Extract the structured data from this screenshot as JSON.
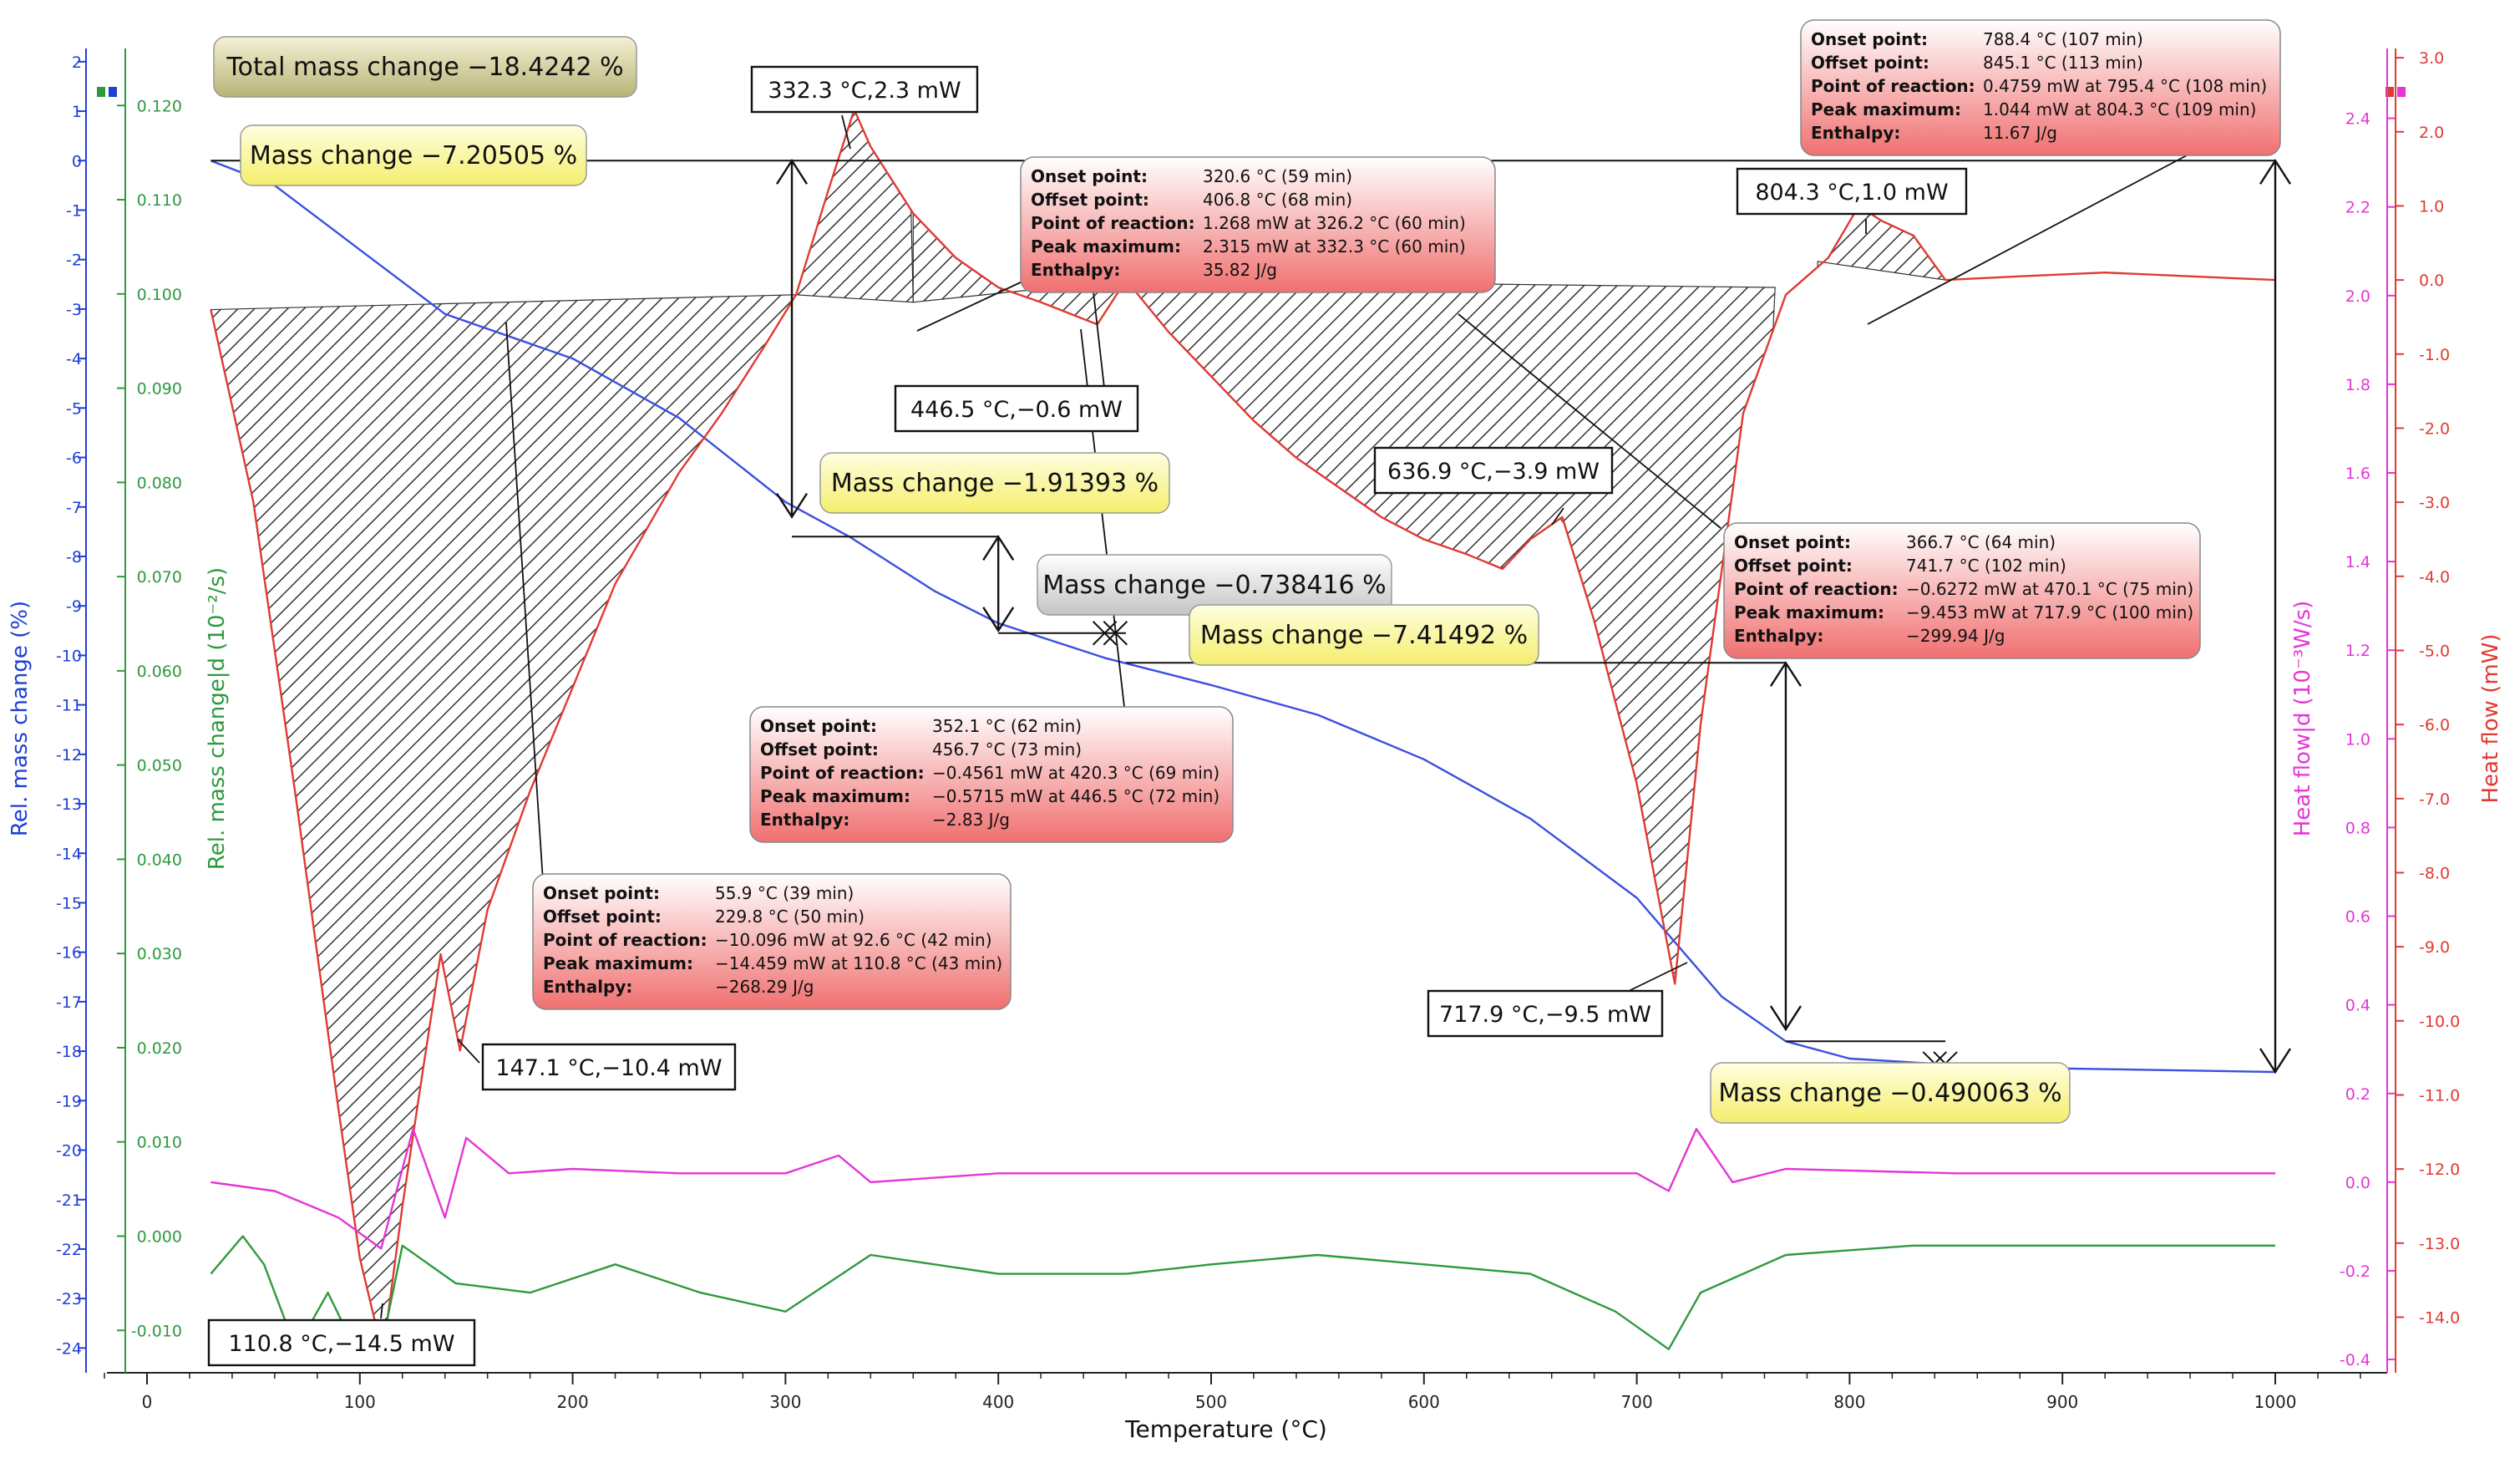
{
  "chart_data": {
    "type": "line",
    "xlabel": "Temperature (°C)",
    "x_ticks": [
      0,
      100,
      200,
      300,
      400,
      500,
      600,
      700,
      800,
      900,
      1000
    ],
    "xlim": [
      -20,
      1050
    ],
    "axes": {
      "mass": {
        "label": "Rel. mass change (%)",
        "color": "#1f3fd6",
        "ticks": [
          2,
          1,
          0,
          -1,
          -2,
          -3,
          -4,
          -5,
          -6,
          -7,
          -8,
          -9,
          -10,
          -11,
          -12,
          -13,
          -14,
          -15,
          -16,
          -17,
          -18,
          -19,
          -20,
          -21,
          -22,
          -23,
          -24
        ],
        "ylim": [
          -24.5,
          2.2
        ]
      },
      "dmass": {
        "label": "Rel. mass change|d (10⁻²/s)",
        "color": "#2e9a3e",
        "ticks": [
          "0.120",
          "0.110",
          "0.100",
          "0.090",
          "0.080",
          "0.070",
          "0.060",
          "0.050",
          "0.040",
          "0.030",
          "0.020",
          "0.010",
          "0.000",
          "-0.010"
        ],
        "ylim": [
          -0.0145,
          0.1257
        ]
      },
      "dheat": {
        "label": "Heat flow|d (10⁻³W/s)",
        "color": "#e535d6",
        "ticks": [
          "2.4",
          "2.2",
          "2.0",
          "1.8",
          "1.6",
          "1.4",
          "1.2",
          "1.0",
          "0.8",
          "0.6",
          "0.4",
          "0.2",
          "0.0",
          "-0.2",
          "-0.4"
        ],
        "ylim": [
          -0.43,
          2.55
        ]
      },
      "heat": {
        "label": "Heat flow (mW)",
        "color": "#e03a32",
        "ticks": [
          "3.0",
          "2.0",
          "1.0",
          "0.0",
          "-1.0",
          "-2.0",
          "-3.0",
          "-4.0",
          "-5.0",
          "-6.0",
          "-7.0",
          "-8.0",
          "-9.0",
          "-10.0",
          "-11.0",
          "-12.0",
          "-13.0",
          "-14.0"
        ],
        "ylim": [
          -14.75,
          3.08
        ]
      }
    },
    "series": [
      {
        "name": "Rel. mass change (%)",
        "axis": "mass",
        "color": "#3b4fe0",
        "x": [
          30,
          60,
          100,
          140,
          200,
          250,
          300,
          330,
          370,
          400,
          450,
          500,
          550,
          600,
          650,
          700,
          740,
          770,
          800,
          850,
          900,
          1000
        ],
        "y": [
          0.0,
          -0.5,
          -1.8,
          -3.1,
          -4.0,
          -5.2,
          -6.9,
          -7.6,
          -8.7,
          -9.35,
          -10.05,
          -10.6,
          -11.2,
          -12.1,
          -13.3,
          -14.9,
          -16.9,
          -17.8,
          -18.15,
          -18.28,
          -18.35,
          -18.42
        ]
      },
      {
        "name": "Heat flow (mW)",
        "axis": "heat",
        "color": "#e03a32",
        "x": [
          30,
          50,
          70,
          90,
          100,
          110.8,
          120,
          130,
          138,
          147.1,
          160,
          180,
          200,
          220,
          250,
          270,
          290,
          305,
          320,
          332.3,
          340,
          360,
          380,
          400,
          420,
          446.5,
          460,
          480,
          500,
          520,
          540,
          560,
          580,
          600,
          620,
          636.9,
          650,
          665,
          680,
          700,
          717.9,
          730,
          750,
          770,
          790,
          804.3,
          815,
          830,
          845,
          880,
          920,
          960,
          1000
        ],
        "y": [
          -0.4,
          -3.0,
          -7.0,
          -11.2,
          -13.2,
          -14.5,
          -12.5,
          -10.6,
          -9.1,
          -10.4,
          -8.5,
          -6.9,
          -5.5,
          -4.1,
          -2.6,
          -1.8,
          -0.9,
          -0.2,
          1.2,
          2.3,
          1.8,
          0.9,
          0.3,
          -0.1,
          -0.3,
          -0.6,
          0.0,
          -0.7,
          -1.3,
          -1.9,
          -2.4,
          -2.8,
          -3.2,
          -3.5,
          -3.7,
          -3.9,
          -3.5,
          -3.2,
          -4.6,
          -6.8,
          -9.5,
          -6.0,
          -1.8,
          -0.2,
          0.3,
          1.0,
          0.8,
          0.6,
          0.0,
          0.05,
          0.1,
          0.05,
          0.0
        ]
      },
      {
        "name": "Heat flow|d (10⁻³W/s)",
        "axis": "dheat",
        "color": "#e535d6",
        "x": [
          30,
          60,
          90,
          110,
          125,
          140,
          150,
          170,
          200,
          250,
          300,
          325,
          340,
          400,
          500,
          600,
          700,
          715,
          728,
          745,
          770,
          850,
          1000
        ],
        "y": [
          0.0,
          -0.02,
          -0.08,
          -0.15,
          0.12,
          -0.08,
          0.1,
          0.02,
          0.03,
          0.02,
          0.02,
          0.06,
          0.0,
          0.02,
          0.02,
          0.02,
          0.02,
          -0.02,
          0.12,
          0.0,
          0.03,
          0.02,
          0.02
        ]
      },
      {
        "name": "Rel. mass change|d (10⁻²/s)",
        "axis": "dmass",
        "color": "#2e9a3e",
        "x": [
          30,
          45,
          55,
          70,
          85,
          100,
          110,
          120,
          145,
          180,
          220,
          260,
          300,
          340,
          370,
          400,
          460,
          500,
          550,
          600,
          650,
          690,
          715,
          730,
          770,
          830,
          1000
        ],
        "y": [
          -0.004,
          0.0,
          -0.003,
          -0.012,
          -0.006,
          -0.013,
          -0.012,
          -0.001,
          -0.005,
          -0.006,
          -0.003,
          -0.006,
          -0.008,
          -0.002,
          -0.003,
          -0.004,
          -0.004,
          -0.003,
          -0.002,
          -0.003,
          -0.004,
          -0.008,
          -0.012,
          -0.006,
          -0.002,
          -0.001,
          -0.001
        ]
      }
    ],
    "peak_labels": [
      {
        "text": "332.3 °C,2.3 mW"
      },
      {
        "text": "446.5 °C,−0.6 mW"
      },
      {
        "text": "636.9 °C,−3.9 mW"
      },
      {
        "text": "804.3 °C,1.0 mW"
      },
      {
        "text": "717.9 °C,−9.5 mW"
      },
      {
        "text": "147.1 °C,−10.4 mW"
      },
      {
        "text": "110.8 °C,−14.5 mW"
      }
    ],
    "mass_change_labels": [
      {
        "text": "Total mass change  −18.4242 %",
        "style": "olive"
      },
      {
        "text": "Mass change  −7.20505 %",
        "style": "yellow"
      },
      {
        "text": "Mass change  −1.91393 %",
        "style": "yellow"
      },
      {
        "text": "Mass change  −0.738416 %",
        "style": "grey"
      },
      {
        "text": "Mass change  −7.41492 %",
        "style": "yellow"
      },
      {
        "text": "Mass change  −0.490063 %",
        "style": "yellow"
      }
    ],
    "peak_tables": [
      {
        "rows": [
          [
            "Onset point:",
            "788.4 °C (107 min)"
          ],
          [
            "Offset point:",
            "845.1 °C (113 min)"
          ],
          [
            "Point of reaction:",
            "0.4759 mW at 795.4 °C (108 min)"
          ],
          [
            "Peak maximum:",
            "1.044 mW at 804.3 °C (109 min)"
          ],
          [
            "Enthalpy:",
            "11.67 J/g"
          ]
        ]
      },
      {
        "rows": [
          [
            "Onset point:",
            "320.6 °C (59 min)"
          ],
          [
            "Offset point:",
            "406.8 °C (68 min)"
          ],
          [
            "Point of reaction:",
            "1.268 mW at 326.2 °C (60 min)"
          ],
          [
            "Peak maximum:",
            "2.315 mW at 332.3 °C (60 min)"
          ],
          [
            "Enthalpy:",
            "35.82 J/g"
          ]
        ]
      },
      {
        "rows": [
          [
            "Onset point:",
            "366.7 °C (64 min)"
          ],
          [
            "Offset point:",
            "741.7 °C (102 min)"
          ],
          [
            "Point of reaction:",
            "−0.6272 mW at 470.1 °C (75 min)"
          ],
          [
            "Peak maximum:",
            "−9.453 mW at 717.9 °C (100 min)"
          ],
          [
            "Enthalpy:",
            "−299.94 J/g"
          ]
        ]
      },
      {
        "rows": [
          [
            "Onset point:",
            "352.1 °C (62 min)"
          ],
          [
            "Offset point:",
            "456.7 °C (73 min)"
          ],
          [
            "Point of reaction:",
            "−0.4561 mW at 420.3 °C (69 min)"
          ],
          [
            "Peak maximum:",
            "−0.5715 mW at 446.5 °C (72 min)"
          ],
          [
            "Enthalpy:",
            "−2.83 J/g"
          ]
        ]
      },
      {
        "rows": [
          [
            "Onset point:",
            "55.9 °C (39 min)"
          ],
          [
            "Offset point:",
            "229.8 °C (50 min)"
          ],
          [
            "Point of reaction:",
            "−10.096 mW at 92.6 °C (42 min)"
          ],
          [
            "Peak maximum:",
            "−14.459 mW at 110.8 °C (43 min)"
          ],
          [
            "Enthalpy:",
            "−268.29 J/g"
          ]
        ]
      }
    ]
  }
}
